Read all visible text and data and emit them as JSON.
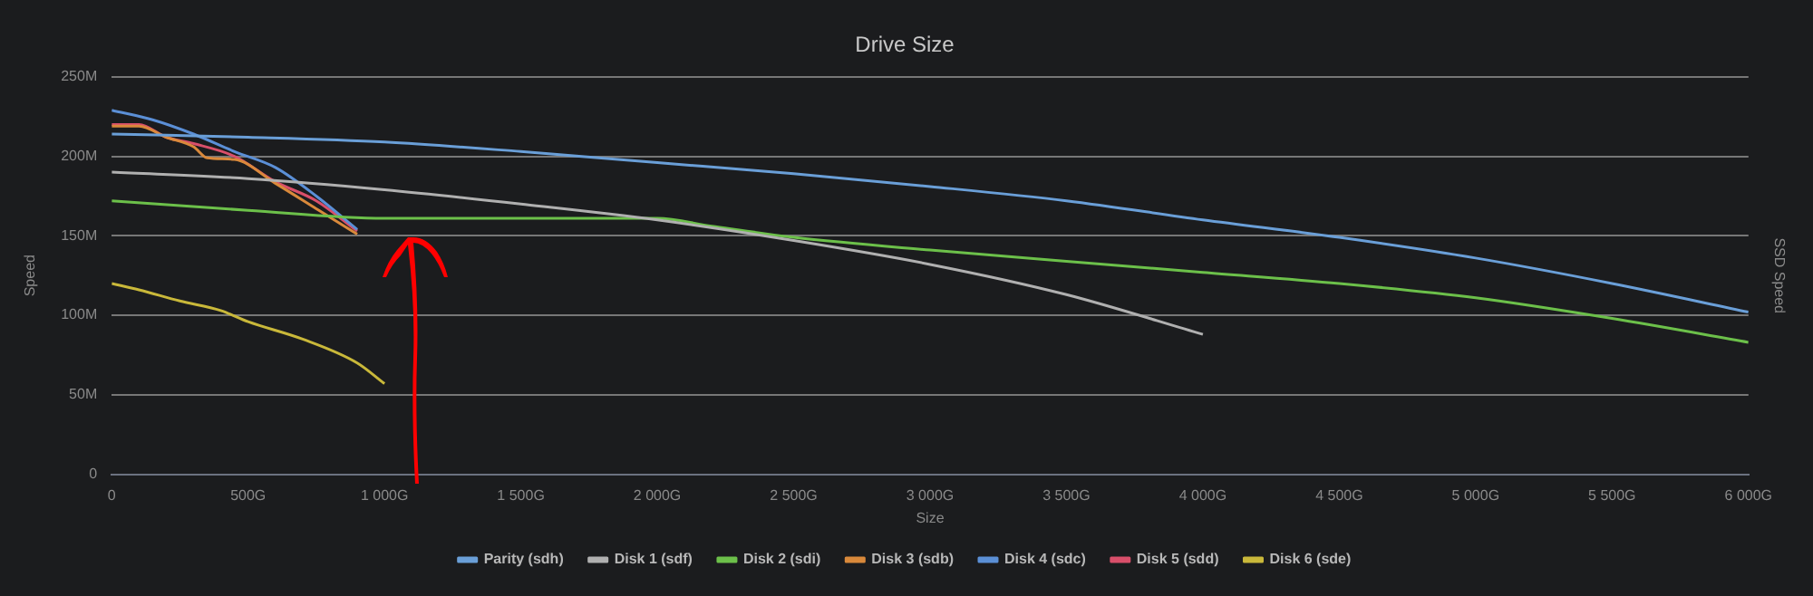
{
  "chart_data": {
    "type": "line",
    "title": "Drive Size",
    "xlabel": "Size",
    "ylabel": "Speed",
    "y2label": "SSD Speed",
    "xlim": [
      0,
      6000
    ],
    "xticks": [
      0,
      {
        "value": 500,
        "label": "500G"
      },
      {
        "value": 1000,
        "label": "1 000G"
      },
      {
        "value": 1500,
        "label": "1 500G"
      },
      {
        "value": 2000,
        "label": "2 000G"
      },
      {
        "value": 2500,
        "label": "2 500G"
      },
      {
        "value": 3000,
        "label": "3 000G"
      },
      {
        "value": 3500,
        "label": "3 500G"
      },
      {
        "value": 4000,
        "label": "4 000G"
      },
      {
        "value": 4500,
        "label": "4 500G"
      },
      {
        "value": 5000,
        "label": "5 000G"
      },
      {
        "value": 5500,
        "label": "5 500G"
      },
      {
        "value": 6000,
        "label": "6 000G"
      }
    ],
    "ylim": [
      0,
      250
    ],
    "yticks": [
      0,
      {
        "value": 50,
        "label": "50M"
      },
      {
        "value": 100,
        "label": "100M"
      },
      {
        "value": 150,
        "label": "150M"
      },
      {
        "value": 200,
        "label": "200M"
      },
      {
        "value": 250,
        "label": "250M"
      }
    ],
    "grid": "y",
    "legend": "bottom",
    "marker": "none",
    "line_style": "solid",
    "series": [
      {
        "name": "Parity (sdh)",
        "color": "#6a9fd8",
        "x": [
          0,
          500,
          1000,
          1500,
          2000,
          2500,
          3000,
          3500,
          4000,
          4500,
          5000,
          5500,
          6000
        ],
        "values": [
          214,
          212,
          209,
          203,
          196,
          189,
          181,
          172,
          160,
          149,
          136,
          120,
          102
        ]
      },
      {
        "name": "Disk 1 (sdf)",
        "color": "#b0b0b0",
        "x": [
          0,
          500,
          1000,
          1500,
          2000,
          2500,
          3000,
          3500,
          4000
        ],
        "values": [
          190,
          186,
          179,
          170,
          160,
          147,
          132,
          113,
          88
        ]
      },
      {
        "name": "Disk 2 (sdi)",
        "color": "#6cc04a",
        "x": [
          0,
          500,
          1000,
          1500,
          2000,
          2200,
          2500,
          3000,
          3500,
          4000,
          4500,
          5000,
          5500,
          6000
        ],
        "values": [
          172,
          166,
          161,
          161,
          161,
          156,
          149,
          141,
          134,
          127,
          120,
          111,
          98,
          83
        ]
      },
      {
        "name": "Disk 3 (sdb)",
        "color": "#d9893b",
        "x": [
          0,
          100,
          200,
          300,
          350,
          450,
          600,
          750,
          900
        ],
        "values": [
          219,
          219,
          212,
          206,
          199,
          198,
          183,
          167,
          151
        ]
      },
      {
        "name": "Disk 4 (sdc)",
        "color": "#5b8fd6",
        "x": [
          0,
          150,
          300,
          450,
          600,
          750,
          900
        ],
        "values": [
          229,
          223,
          214,
          203,
          193,
          175,
          154
        ]
      },
      {
        "name": "Disk 5 (sdd)",
        "color": "#d94f6a",
        "x": [
          0,
          100,
          200,
          300,
          450,
          600,
          750,
          900
        ],
        "values": [
          220,
          220,
          212,
          208,
          200,
          184,
          172,
          153
        ]
      },
      {
        "name": "Disk 6 (sde)",
        "color": "#c9b83a",
        "x": [
          0,
          100,
          250,
          400,
          500,
          700,
          900,
          1000
        ],
        "values": [
          120,
          116,
          109,
          103,
          96,
          85,
          70,
          57
        ]
      }
    ]
  }
}
